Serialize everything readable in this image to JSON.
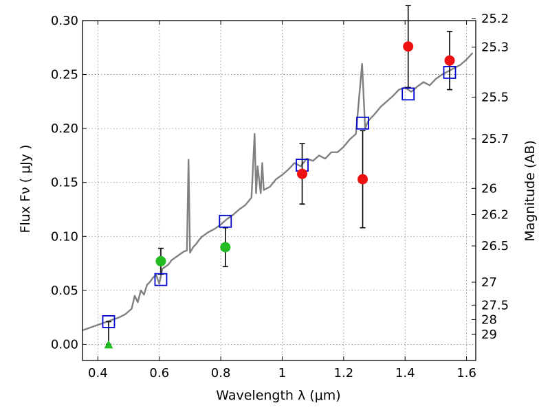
{
  "chart_data": {
    "type": "scatter",
    "xlabel": "Wavelength  λ (μm)",
    "ylabel": "Flux  Fν  ( μJy )",
    "y2label": "Magnitude (AB)",
    "xlim": [
      0.35,
      1.63
    ],
    "ylim": [
      -0.015,
      0.3
    ],
    "grid": true,
    "x_ticks": [
      {
        "value": 0.4,
        "label": "0.4"
      },
      {
        "value": 0.6,
        "label": "0.6"
      },
      {
        "value": 0.8,
        "label": "0.8"
      },
      {
        "value": 1.0,
        "label": "1"
      },
      {
        "value": 1.2,
        "label": "1.2"
      },
      {
        "value": 1.4,
        "label": "1.4"
      },
      {
        "value": 1.6,
        "label": "1.6"
      }
    ],
    "y_ticks": [
      {
        "value": 0.0,
        "label": "0.00"
      },
      {
        "value": 0.05,
        "label": "0.05"
      },
      {
        "value": 0.1,
        "label": "0.10"
      },
      {
        "value": 0.15,
        "label": "0.15"
      },
      {
        "value": 0.2,
        "label": "0.20"
      },
      {
        "value": 0.25,
        "label": "0.25"
      },
      {
        "value": 0.3,
        "label": "0.30"
      }
    ],
    "magnitude_ticks": [
      {
        "value": 25.2,
        "label": "25.2"
      },
      {
        "value": 25.3,
        "label": "25.3"
      },
      {
        "value": 25.5,
        "label": "25.5"
      },
      {
        "value": 25.7,
        "label": "25.7"
      },
      {
        "value": 26.0,
        "label": "26"
      },
      {
        "value": 26.2,
        "label": "26.2"
      },
      {
        "value": 26.5,
        "label": "26.5"
      },
      {
        "value": 27.0,
        "label": "27"
      },
      {
        "value": 27.5,
        "label": "27.5"
      },
      {
        "value": 28.0,
        "label": "28"
      },
      {
        "value": 29.0,
        "label": "29"
      }
    ],
    "colors": {
      "spectrum": "#808080",
      "model": "#0000cc",
      "optical": "#22bb22",
      "infrared": "#ee1111",
      "error_bar": "#000000",
      "grid": "#808080"
    },
    "spectrum": {
      "x": [
        0.35,
        0.37,
        0.39,
        0.41,
        0.43,
        0.45,
        0.47,
        0.49,
        0.51,
        0.52,
        0.53,
        0.54,
        0.55,
        0.56,
        0.57,
        0.58,
        0.59,
        0.6,
        0.61,
        0.62,
        0.63,
        0.64,
        0.65,
        0.66,
        0.67,
        0.68,
        0.69,
        0.695,
        0.7,
        0.71,
        0.72,
        0.73,
        0.74,
        0.76,
        0.78,
        0.8,
        0.82,
        0.84,
        0.86,
        0.88,
        0.9,
        0.91,
        0.915,
        0.92,
        0.93,
        0.935,
        0.94,
        0.96,
        0.98,
        1.0,
        1.02,
        1.04,
        1.06,
        1.08,
        1.1,
        1.12,
        1.14,
        1.16,
        1.18,
        1.2,
        1.22,
        1.24,
        1.26,
        1.27,
        1.28,
        1.3,
        1.32,
        1.34,
        1.36,
        1.38,
        1.4,
        1.42,
        1.44,
        1.46,
        1.48,
        1.5,
        1.52,
        1.54,
        1.56,
        1.58,
        1.6,
        1.62
      ],
      "y": [
        0.013,
        0.015,
        0.017,
        0.019,
        0.021,
        0.023,
        0.025,
        0.028,
        0.033,
        0.045,
        0.039,
        0.05,
        0.046,
        0.055,
        0.058,
        0.062,
        0.064,
        0.056,
        0.07,
        0.072,
        0.074,
        0.078,
        0.08,
        0.082,
        0.084,
        0.086,
        0.087,
        0.171,
        0.085,
        0.09,
        0.093,
        0.097,
        0.1,
        0.104,
        0.107,
        0.111,
        0.116,
        0.12,
        0.125,
        0.129,
        0.136,
        0.195,
        0.14,
        0.165,
        0.14,
        0.168,
        0.143,
        0.146,
        0.153,
        0.157,
        0.162,
        0.168,
        0.165,
        0.172,
        0.17,
        0.175,
        0.172,
        0.178,
        0.178,
        0.183,
        0.19,
        0.195,
        0.26,
        0.2,
        0.207,
        0.213,
        0.22,
        0.225,
        0.23,
        0.236,
        0.238,
        0.234,
        0.239,
        0.243,
        0.24,
        0.246,
        0.25,
        0.253,
        0.256,
        0.259,
        0.264,
        0.27
      ]
    },
    "model_points": {
      "x": [
        0.435,
        0.605,
        0.815,
        1.065,
        1.262,
        1.41,
        1.545
      ],
      "y": [
        0.021,
        0.06,
        0.114,
        0.166,
        0.205,
        0.232,
        0.252
      ]
    },
    "optical_points": {
      "x": [
        0.605,
        0.815
      ],
      "y": [
        0.077,
        0.09
      ],
      "err": [
        0.012,
        0.018
      ]
    },
    "optical_upper_limit": {
      "x": 0.435,
      "y": 0.0,
      "top": 0.021
    },
    "infrared_points": {
      "x": [
        1.065,
        1.262,
        1.41,
        1.545
      ],
      "y": [
        0.158,
        0.153,
        0.276,
        0.263
      ],
      "err": [
        0.028,
        0.045,
        0.038,
        0.027
      ]
    }
  }
}
